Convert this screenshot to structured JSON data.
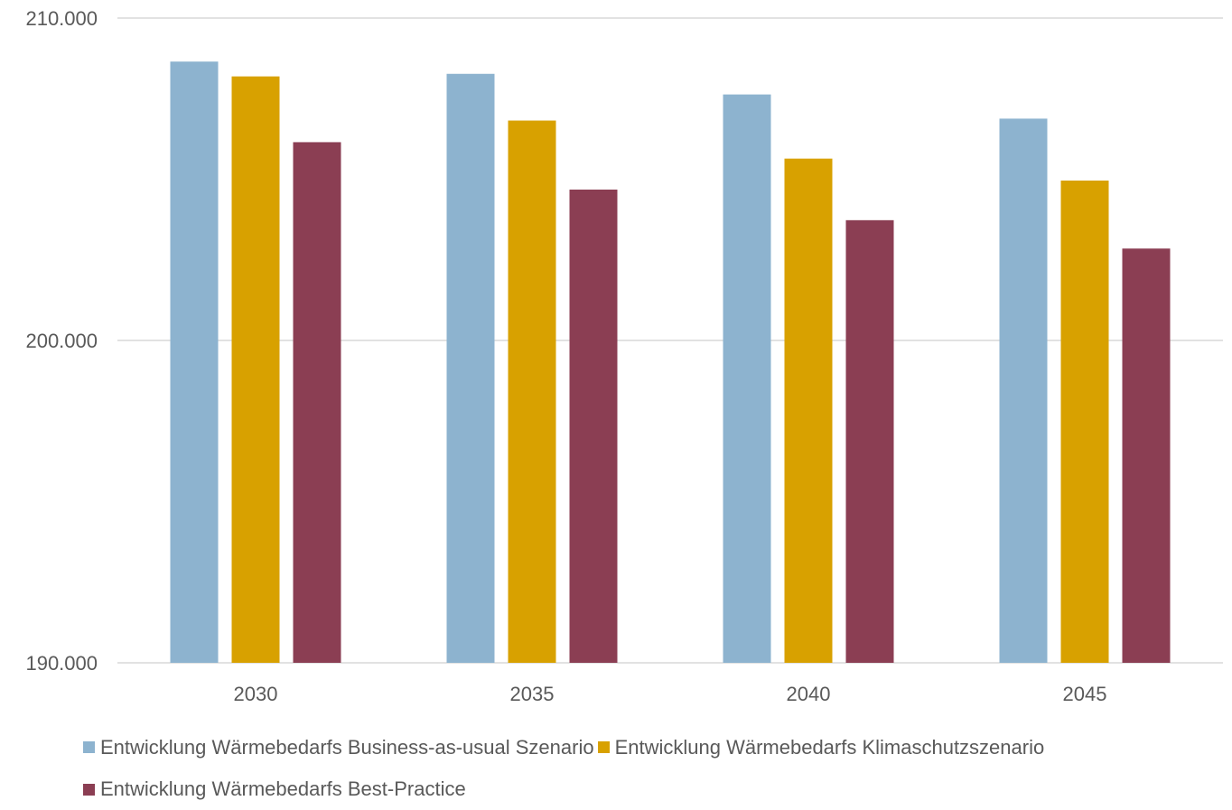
{
  "chart_data": {
    "type": "bar",
    "categories": [
      "2030",
      "2035",
      "2040",
      "2045"
    ],
    "series": [
      {
        "name": "Entwicklung Wärmebedarfs Business-as-usual Szenario",
        "color": "#8db3cf",
        "values": [
          208.65,
          208.27,
          207.63,
          206.88
        ]
      },
      {
        "name": "Entwicklung Wärmebedarfs Klimaschutzszenario",
        "color": "#d8a100",
        "values": [
          208.19,
          206.82,
          205.64,
          204.96
        ]
      },
      {
        "name": "Entwicklung Wärmebedarfs Best-Practice",
        "color": "#8b3e53",
        "values": [
          206.15,
          204.68,
          203.73,
          202.85
        ]
      }
    ],
    "ylim": [
      190.0,
      210.0
    ],
    "yticks": [
      {
        "value": 190.0,
        "label": "190.000"
      },
      {
        "value": 200.0,
        "label": "200.000"
      },
      {
        "value": 210.0,
        "label": "210.000"
      }
    ],
    "grid": true,
    "legend_position": "bottom",
    "gridline_color": "#d9d9d9"
  }
}
